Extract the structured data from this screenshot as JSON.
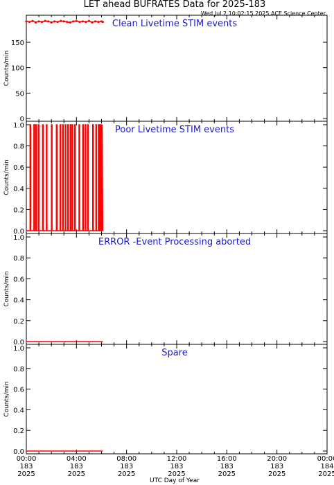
{
  "chart_data": {
    "type": "line",
    "title": "LET ahead BUFRATES Data for 2025-183",
    "subtitle": "Wed Jul  2 10:02:15 2025 ACE Science Center",
    "xlabel": "UTC Day of Year",
    "x_ticks": [
      {
        "time": "00:00",
        "doy": "183",
        "year": "2025"
      },
      {
        "time": "04:00",
        "doy": "183",
        "year": "2025"
      },
      {
        "time": "08:00",
        "doy": "183",
        "year": "2025"
      },
      {
        "time": "12:00",
        "doy": "183",
        "year": "2025"
      },
      {
        "time": "16:00",
        "doy": "183",
        "year": "2025"
      },
      {
        "time": "20:00",
        "doy": "183",
        "year": "2025"
      },
      {
        "time": "00:00",
        "doy": "184",
        "year": "2025"
      }
    ],
    "xlim_hours": [
      0,
      24
    ],
    "color": "#ff0000",
    "panels": [
      {
        "title": "Clean Livetime STIM events",
        "ylabel": "Counts/min",
        "ylim": [
          0,
          195
        ],
        "yticks": [
          "0",
          "50",
          "100",
          "150"
        ],
        "ytick_values": [
          0,
          50,
          100,
          150
        ],
        "series": [
          {
            "hours": [
              0.0,
              0.25,
              0.5,
              0.75,
              1.0,
              1.25,
              1.5,
              1.75,
              2.0,
              2.25,
              2.5,
              2.75,
              3.0,
              3.25,
              3.5,
              3.75,
              4.0,
              4.25,
              4.5,
              4.75,
              5.0,
              5.25,
              5.5,
              5.75,
              6.0,
              6.1
            ],
            "values": [
              191,
              190,
              192,
              189,
              191,
              190,
              192,
              191,
              189,
              191,
              190,
              192,
              191,
              190,
              189,
              191,
              192,
              190,
              191,
              190,
              192,
              189,
              191,
              190,
              191,
              190
            ]
          }
        ]
      },
      {
        "title": "Poor Livetime STIM events",
        "ylabel": "Counts/min",
        "ylim": [
          0,
          1
        ],
        "yticks": [
          "0.0",
          "0.2",
          "0.4",
          "0.6",
          "0.8",
          "1.0"
        ],
        "ytick_values": [
          0,
          0.2,
          0.4,
          0.6,
          0.8,
          1.0
        ],
        "series": [
          {
            "hours": [
              0.0,
              0.3,
              0.3,
              0.35,
              0.35,
              0.6,
              0.6,
              0.65,
              0.65,
              0.75,
              0.75,
              0.8,
              0.8,
              0.95,
              0.95,
              1.0,
              1.0,
              1.3,
              1.3,
              1.35,
              1.35,
              1.6,
              1.6,
              1.65,
              1.65,
              2.0,
              2.0,
              2.05,
              2.05,
              2.4,
              2.4,
              2.45,
              2.45,
              2.7,
              2.7,
              2.75,
              2.75,
              2.9,
              2.9,
              2.95,
              2.95,
              3.1,
              3.1,
              3.15,
              3.15,
              3.3,
              3.3,
              3.35,
              3.35,
              3.5,
              3.5,
              3.55,
              3.55,
              3.65,
              3.65,
              3.7,
              3.7,
              3.85,
              3.85,
              3.9,
              3.9,
              4.2,
              4.2,
              4.25,
              4.25,
              4.5,
              4.5,
              4.55,
              4.55,
              4.7,
              4.7,
              4.75,
              4.75,
              4.9,
              4.9,
              4.95,
              4.95,
              5.3,
              5.3,
              5.35,
              5.35,
              5.55,
              5.55,
              5.6,
              5.6,
              5.75,
              5.75,
              5.8,
              5.8,
              5.85,
              5.85,
              5.9,
              5.9,
              5.95,
              5.95,
              6.0,
              6.0,
              6.05,
              6.05,
              6.1
            ],
            "values": [
              0,
              0,
              1,
              1,
              0,
              0,
              1,
              1,
              0,
              0,
              1,
              1,
              0,
              0,
              1,
              1,
              0,
              0,
              1,
              1,
              0,
              0,
              1,
              1,
              0,
              0,
              1,
              1,
              0,
              0,
              1,
              1,
              0,
              0,
              1,
              1,
              0,
              0,
              1,
              1,
              0,
              0,
              1,
              1,
              0,
              0,
              1,
              1,
              0,
              0,
              1,
              1,
              0,
              0,
              1,
              1,
              0,
              0,
              1,
              1,
              0,
              0,
              1,
              1,
              0,
              0,
              1,
              1,
              0,
              0,
              1,
              1,
              0,
              0,
              1,
              1,
              0,
              0,
              1,
              1,
              0,
              0,
              1,
              1,
              0,
              0,
              1,
              1,
              0,
              0,
              1,
              1,
              0,
              0,
              1,
              1,
              0,
              0,
              1,
              0
            ]
          }
        ]
      },
      {
        "title": "ERROR -Event Processing aborted",
        "ylabel": "Counts/min",
        "ylim": [
          0,
          1
        ],
        "yticks": [
          "0.0",
          "0.2",
          "0.4",
          "0.6",
          "0.8",
          "1.0"
        ],
        "ytick_values": [
          0,
          0.2,
          0.4,
          0.6,
          0.8,
          1.0
        ],
        "series": [
          {
            "hours": [
              0.0,
              6.1
            ],
            "values": [
              0,
              0
            ]
          }
        ]
      },
      {
        "title": "Spare",
        "ylabel": "Counts/min",
        "ylim": [
          0,
          1
        ],
        "yticks": [
          "0.0",
          "0.2",
          "0.4",
          "0.6",
          "0.8",
          "1.0"
        ],
        "ytick_values": [
          0,
          0.2,
          0.4,
          0.6,
          0.8,
          1.0
        ],
        "series": [
          {
            "hours": [
              0.0,
              6.1
            ],
            "values": [
              0,
              0
            ]
          }
        ]
      }
    ]
  }
}
